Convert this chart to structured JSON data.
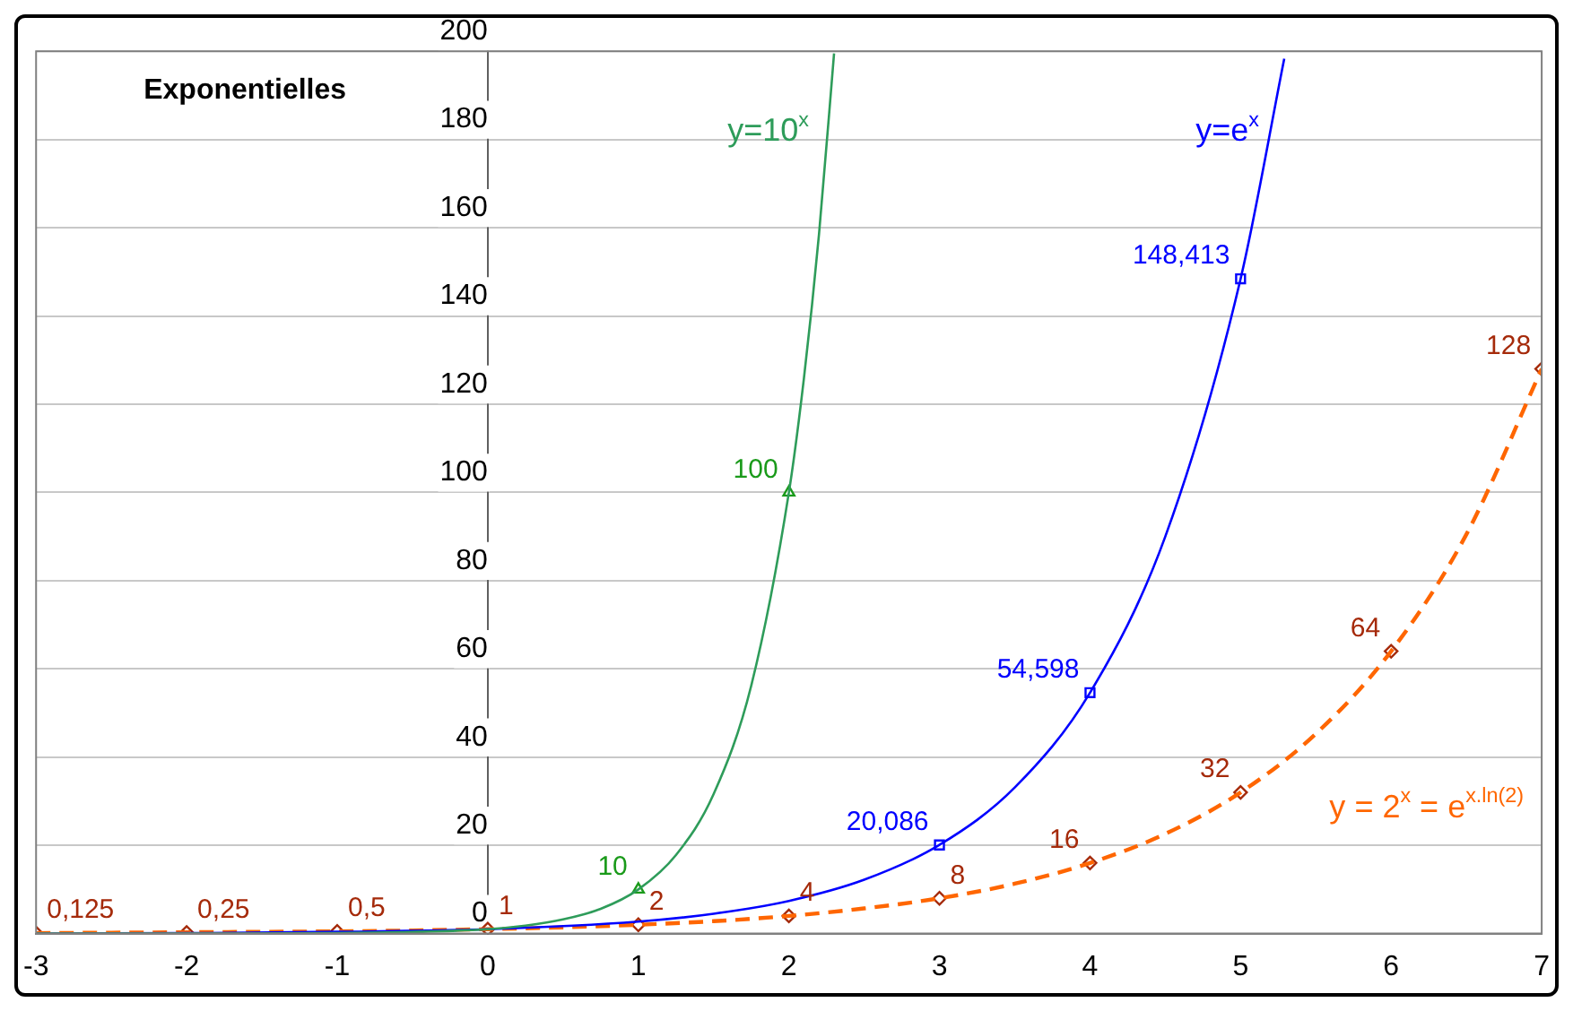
{
  "chart_data": {
    "type": "line",
    "title": "Exponentielles",
    "xlim": [
      -3,
      7
    ],
    "xticks": [
      -3,
      -2,
      -1,
      0,
      1,
      2,
      3,
      4,
      5,
      6,
      7
    ],
    "ylim": [
      0,
      200
    ],
    "yticks": [
      0,
      20,
      40,
      60,
      80,
      100,
      120,
      140,
      160,
      180,
      200
    ],
    "grid": "y",
    "legend": false,
    "series": [
      {
        "type": "line",
        "name": "y=10$^{x}$",
        "color": "#2e9c5a",
        "marker": "none",
        "line_style": "solid",
        "x": [
          -3,
          -2,
          -1,
          0,
          0.25,
          0.5,
          0.75,
          1,
          1.25,
          1.5,
          1.75,
          2,
          2.1,
          2.2,
          2.3
        ],
        "values": [
          0,
          0,
          0.1,
          1,
          1.8,
          3.2,
          5.6,
          10,
          17.8,
          31.6,
          56.2,
          100,
          125.9,
          158.5,
          199.5
        ]
      },
      {
        "type": "scatter",
        "color": "#1a9a1a",
        "marker": "triangle",
        "x": [
          1,
          2
        ],
        "values": [
          10,
          100
        ],
        "value_labels": [
          "10",
          "100"
        ]
      },
      {
        "type": "line",
        "name": "y=e$^{x}$",
        "color": "#0000ff",
        "marker": "none",
        "line_style": "solid",
        "x": [
          -3,
          -2,
          -1,
          0,
          1,
          1.5,
          2,
          2.5,
          3,
          3.5,
          4,
          4.5,
          5,
          5.29
        ],
        "values": [
          0,
          0.1,
          0.4,
          1,
          2.7,
          4.5,
          7.4,
          12.2,
          20.1,
          33.1,
          54.6,
          90,
          148.4,
          198.3
        ]
      },
      {
        "type": "scatter",
        "color": "#0000ff",
        "marker": "square",
        "x": [
          3,
          4,
          5
        ],
        "values": [
          20.086,
          54.598,
          148.413
        ],
        "value_labels": [
          "20,086",
          "54,598",
          "148,413"
        ]
      },
      {
        "type": "line",
        "name": "y = 2$^{x}$ = e$^{x.ln(2)}$",
        "color": "#ff6600",
        "marker": "none",
        "line_style": "dashed",
        "x": [
          -3,
          -2.5,
          -2,
          -1.5,
          -1,
          -0.5,
          0,
          0.5,
          1,
          1.5,
          2,
          2.5,
          3,
          3.5,
          4,
          4.5,
          5,
          5.5,
          6,
          6.5,
          7
        ],
        "values": [
          0.1,
          0.2,
          0.3,
          0.4,
          0.5,
          0.7,
          1,
          1.4,
          2,
          2.8,
          4,
          5.7,
          8,
          11.3,
          16,
          22.6,
          32,
          45.3,
          64,
          90.5,
          128
        ]
      },
      {
        "type": "scatter",
        "color": "#a52a0a",
        "marker": "diamond",
        "x": [
          -3,
          -2,
          -1,
          0,
          1,
          2,
          3,
          4,
          5,
          6,
          7
        ],
        "values": [
          0.125,
          0.25,
          0.5,
          1,
          2,
          4,
          8,
          16,
          32,
          64,
          128
        ],
        "value_labels": [
          "0,125",
          "0,25",
          "0,5",
          "1",
          "2",
          "4",
          "8",
          "16",
          "32",
          "64",
          "128"
        ]
      }
    ]
  }
}
